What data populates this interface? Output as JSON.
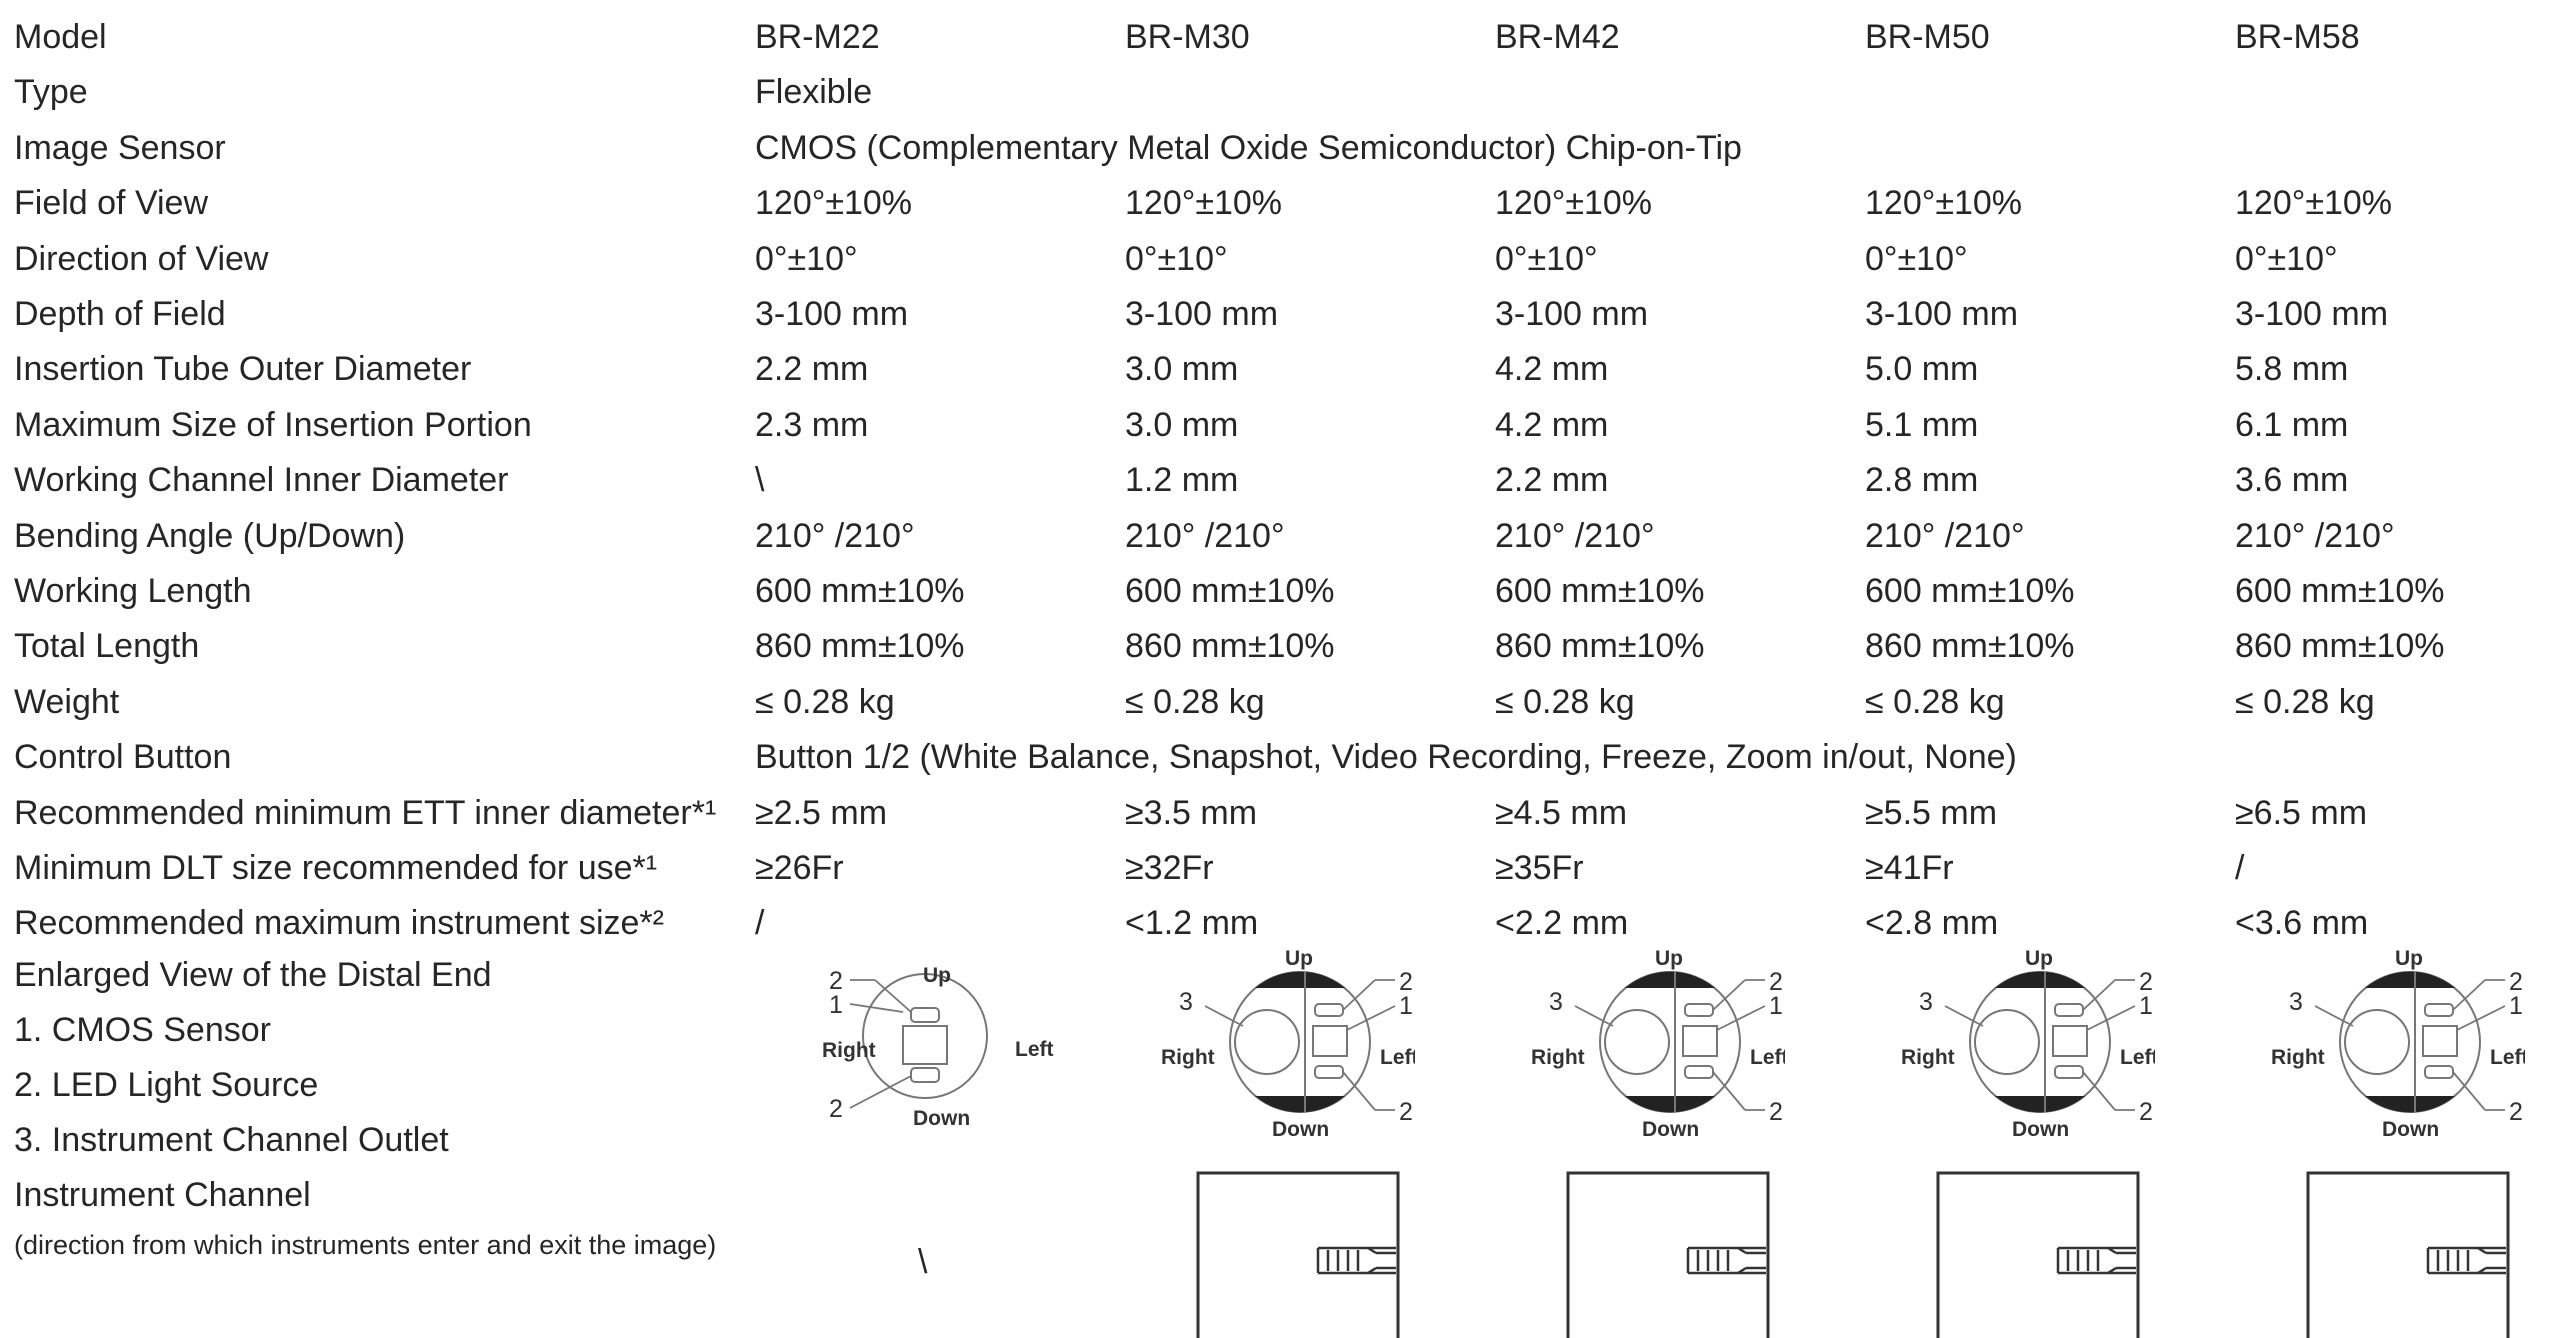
{
  "models": [
    "BR-M22",
    "BR-M30",
    "BR-M42",
    "BR-M50",
    "BR-M58"
  ],
  "rows": [
    {
      "label": "Model",
      "values": [
        "BR-M22",
        "BR-M30",
        "BR-M42",
        "BR-M50",
        "BR-M58"
      ]
    },
    {
      "label": "Type",
      "values": [
        "Flexible"
      ]
    },
    {
      "label": "Image Sensor",
      "values": [
        "CMOS (Complementary Metal Oxide Semiconductor) Chip-on-Tip"
      ]
    },
    {
      "label": "Field of View",
      "values": [
        "120°±10%",
        "120°±10%",
        "120°±10%",
        "120°±10%",
        "120°±10%"
      ]
    },
    {
      "label": "Direction of View",
      "values": [
        "0°±10°",
        "0°±10°",
        "0°±10°",
        "0°±10°",
        "0°±10°"
      ]
    },
    {
      "label": "Depth of Field",
      "values": [
        "3-100 mm",
        "3-100 mm",
        "3-100 mm",
        "3-100 mm",
        "3-100 mm"
      ]
    },
    {
      "label": "Insertion Tube Outer Diameter",
      "values": [
        "2.2 mm",
        "3.0 mm",
        "4.2 mm",
        "5.0 mm",
        "5.8 mm"
      ]
    },
    {
      "label": "Maximum Size of Insertion Portion",
      "values": [
        "2.3 mm",
        "3.0 mm",
        "4.2 mm",
        "5.1 mm",
        "6.1 mm"
      ]
    },
    {
      "label": "Working Channel Inner Diameter",
      "values": [
        "\\",
        "1.2 mm",
        "2.2 mm",
        "2.8 mm",
        "3.6 mm"
      ]
    },
    {
      "label": "Bending Angle (Up/Down)",
      "values": [
        "210°  /210°",
        "210°  /210°",
        "210°  /210°",
        "210°  /210°",
        "210°  /210°"
      ]
    },
    {
      "label": "Working Length",
      "values": [
        "600 mm±10%",
        "600 mm±10%",
        "600 mm±10%",
        "600 mm±10%",
        "600 mm±10%"
      ]
    },
    {
      "label": "Total Length",
      "values": [
        "860 mm±10%",
        "860 mm±10%",
        "860 mm±10%",
        "860 mm±10%",
        "860 mm±10%"
      ]
    },
    {
      "label": "Weight",
      "values": [
        "≤  0.28 kg",
        "≤  0.28 kg",
        "≤  0.28 kg",
        "≤  0.28 kg",
        "≤  0.28 kg"
      ]
    },
    {
      "label": "Control Button",
      "values": [
        "Button 1/2 (White Balance, Snapshot, Video Recording, Freeze, Zoom in/out, None)"
      ]
    },
    {
      "label": "Recommended minimum ETT inner diameter*¹",
      "values": [
        "≥2.5 mm",
        "≥3.5 mm",
        "≥4.5 mm",
        "≥5.5 mm",
        "≥6.5 mm"
      ]
    },
    {
      "label": "Minimum DLT size recommended for use*¹",
      "values": [
        "≥26Fr",
        "≥32Fr",
        "≥35Fr",
        "≥41Fr",
        "/"
      ]
    },
    {
      "label": "Recommended maximum instrument size*²",
      "values": [
        "/",
        "<1.2 mm",
        "<2.2 mm",
        "<2.8 mm",
        "<3.6 mm"
      ]
    }
  ],
  "distal": {
    "title": "Enlarged View of the Distal End",
    "legend": [
      "1. CMOS Sensor",
      "2. LED Light Source",
      "3. Instrument Channel Outlet"
    ],
    "labels": {
      "up": "Up",
      "down": "Down",
      "left": "Left",
      "right": "Right",
      "n1": "1",
      "n2": "2",
      "n3": "3"
    }
  },
  "channel": {
    "title": "Instrument Channel",
    "note": "(direction from which instruments enter and exit the image)",
    "m22_value": "\\"
  }
}
